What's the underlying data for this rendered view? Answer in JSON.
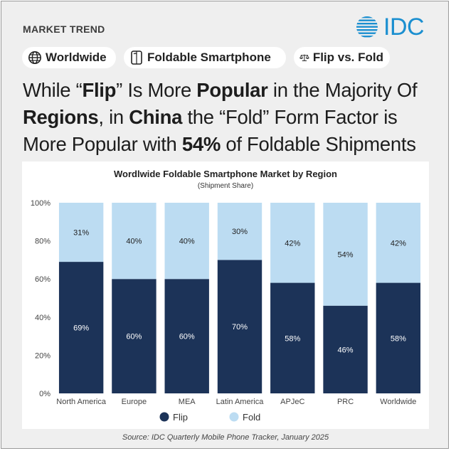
{
  "header": {
    "kicker": "MARKET TREND",
    "logo_text": "IDC",
    "brand_color": "#1b8fd0"
  },
  "tags": [
    {
      "icon": "globe-icon",
      "label": "Worldwide"
    },
    {
      "icon": "foldable-phone-icon",
      "label": "Foldable Smartphone"
    },
    {
      "icon": "scale-icon",
      "label": "Flip vs. Fold"
    }
  ],
  "headline": {
    "t1": "While “",
    "b1": "Flip",
    "t2": "” Is More ",
    "b2": "Popular",
    "t3": " in the Majority Of ",
    "b3": "Regions",
    "t4": ", in ",
    "b4": "China",
    "t5": " the “Fold” Form Factor is More Popular with ",
    "b5": "54%",
    "t6": " of Foldable Shipments"
  },
  "chart_data": {
    "type": "bar",
    "stacked": true,
    "normalized": true,
    "title": "Wordlwide Foldable Smartphone Market by Region",
    "subtitle": "(Shipment Share)",
    "categories": [
      "North America",
      "Europe",
      "MEA",
      "Latin America",
      "APJeC",
      "PRC",
      "Worldwide"
    ],
    "series": [
      {
        "name": "Flip",
        "color": "#1c3358",
        "label_color": "#ffffff",
        "values": [
          69,
          60,
          60,
          70,
          58,
          46,
          58
        ]
      },
      {
        "name": "Fold",
        "color": "#bcdcf2",
        "label_color": "#222222",
        "values": [
          31,
          40,
          40,
          30,
          42,
          54,
          42
        ]
      }
    ],
    "ylim": [
      0,
      100
    ],
    "yticks": [
      "0%",
      "20%",
      "40%",
      "60%",
      "80%",
      "100%"
    ],
    "value_suffix": "%",
    "legend_position": "bottom-center",
    "grid": false
  },
  "footer": {
    "source": "Source: IDC Quarterly Mobile Phone Tracker, January 2025"
  }
}
